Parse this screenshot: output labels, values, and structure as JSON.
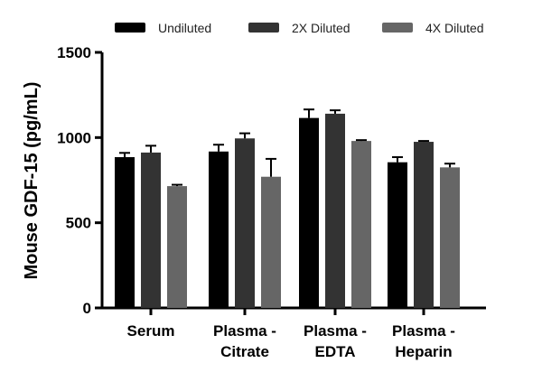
{
  "chart_data": {
    "type": "bar",
    "title": "",
    "xlabel": "",
    "ylabel": "Mouse GDF-15 (pg/mL)",
    "ylim": [
      0,
      1500
    ],
    "yticks": [
      "0",
      "500",
      "1000",
      "1500"
    ],
    "categories": [
      [
        "Serum"
      ],
      [
        "Plasma -",
        "Citrate"
      ],
      [
        "Plasma -",
        "EDTA"
      ],
      [
        "Plasma -",
        "Heparin"
      ]
    ],
    "legend_position": "top",
    "grid": false,
    "series": [
      {
        "name": "Undiluted",
        "color": "#000000",
        "values": [
          885,
          918,
          1115,
          855
        ],
        "errors": [
          25,
          40,
          50,
          30
        ]
      },
      {
        "name": "2X Diluted",
        "color": "#333333",
        "values": [
          912,
          995,
          1140,
          975
        ],
        "errors": [
          40,
          30,
          20,
          5
        ]
      },
      {
        "name": "4X Diluted",
        "color": "#666666",
        "values": [
          715,
          770,
          980,
          825
        ],
        "errors": [
          8,
          105,
          5,
          22
        ]
      }
    ]
  }
}
